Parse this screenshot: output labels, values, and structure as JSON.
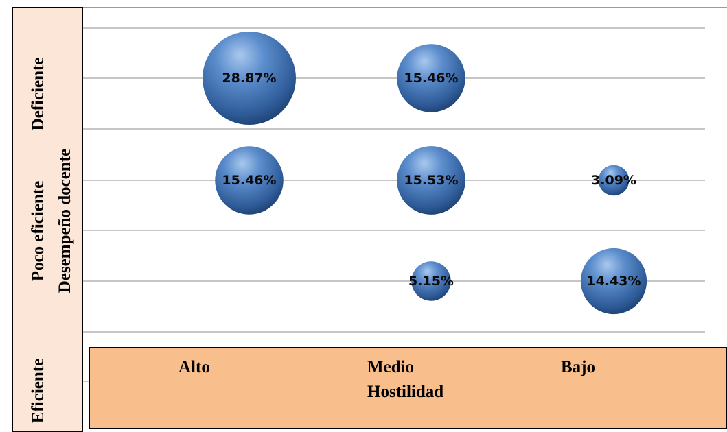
{
  "chart_data": {
    "type": "bubble",
    "x_categories": [
      "Alto",
      "Medio",
      "Bajo"
    ],
    "y_categories": [
      "Deficiente",
      "Poco eficiente",
      "Eficiente"
    ],
    "xlabel": "Hostilidad",
    "ylabel": "Desempeño docente",
    "grid": true,
    "bubble_color": "#4a7ab8",
    "points": [
      {
        "x": "Alto",
        "y": "Deficiente",
        "value": 28.87,
        "label": "28.87%"
      },
      {
        "x": "Medio",
        "y": "Deficiente",
        "value": 15.46,
        "label": "15.46%"
      },
      {
        "x": "Alto",
        "y": "Poco eficiente",
        "value": 15.46,
        "label": "15.46%"
      },
      {
        "x": "Medio",
        "y": "Poco eficiente",
        "value": 15.53,
        "label": "15.53%"
      },
      {
        "x": "Bajo",
        "y": "Poco eficiente",
        "value": 3.09,
        "label": "3.09%"
      },
      {
        "x": "Medio",
        "y": "Eficiente",
        "value": 5.15,
        "label": "5.15%"
      },
      {
        "x": "Bajo",
        "y": "Eficiente",
        "value": 14.43,
        "label": "14.43%"
      }
    ]
  }
}
